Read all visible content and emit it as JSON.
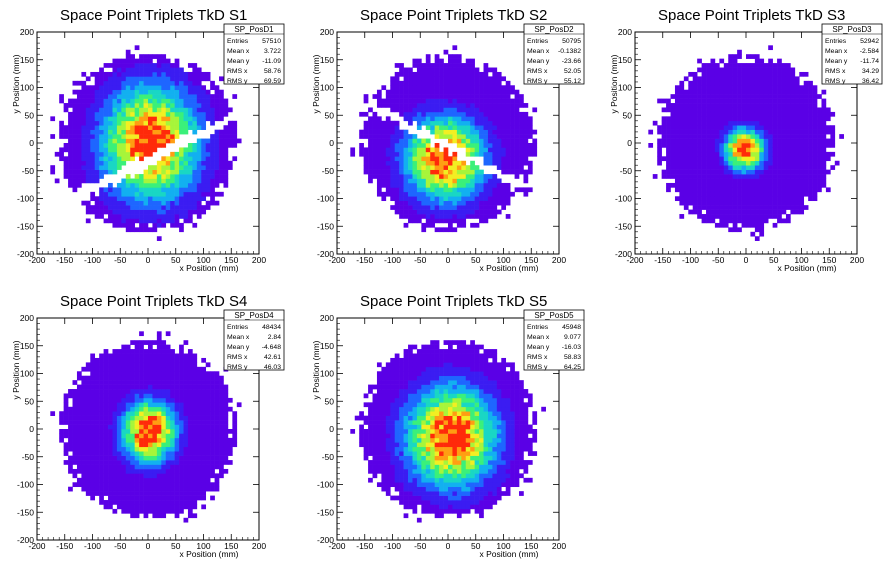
{
  "colors": {
    "palette": [
      "#5a00e6",
      "#3b1cf2",
      "#1e66ff",
      "#12b0f0",
      "#19d7c4",
      "#3af07a",
      "#a7f53a",
      "#f2ef22",
      "#ff9e12",
      "#ff2a0a"
    ],
    "frame": "#000000",
    "background": "#ffffff"
  },
  "chart_data": [
    {
      "type": "heatmap",
      "histogram_name": "SP_PosD1",
      "title": "Space Point Triplets TkD S1",
      "xlabel": "x Position (mm)",
      "ylabel": "y Position (mm)",
      "xlim": [
        -200,
        200
      ],
      "ylim": [
        -200,
        200
      ],
      "x_ticks": [
        "-200",
        "-150",
        "-100",
        "-50",
        "0",
        "50",
        "100",
        "150",
        "200"
      ],
      "y_ticks": [
        "200",
        "150",
        "100",
        "50",
        "0",
        "-50",
        "-100",
        "-150",
        "-200"
      ],
      "stats": [
        {
          "label": "Entries",
          "value": "57510"
        },
        {
          "label": "Mean x",
          "value": "3.722"
        },
        {
          "label": "Mean y",
          "value": "-11.09"
        },
        {
          "label": "RMS x",
          "value": "58.76"
        },
        {
          "label": "RMS y",
          "value": "69.59"
        }
      ],
      "distribution": {
        "center_x": 5,
        "center_y": 0,
        "sigma_x": 58,
        "sigma_y": 68,
        "radius": 162,
        "dead_band": {
          "angle_deg": 27,
          "offset": -28,
          "half_width": 7
        }
      }
    },
    {
      "type": "heatmap",
      "histogram_name": "SP_PosD2",
      "title": "Space Point Triplets TkD S2",
      "xlabel": "x Position (mm)",
      "ylabel": "y Position (mm)",
      "xlim": [
        -200,
        200
      ],
      "ylim": [
        -200,
        200
      ],
      "x_ticks": [
        "-200",
        "-150",
        "-100",
        "-50",
        "0",
        "50",
        "100",
        "150",
        "200"
      ],
      "y_ticks": [
        "200",
        "150",
        "100",
        "50",
        "0",
        "-50",
        "-100",
        "-150",
        "-200"
      ],
      "stats": [
        {
          "label": "Entries",
          "value": "50795"
        },
        {
          "label": "Mean x",
          "value": "-0.1382"
        },
        {
          "label": "Mean y",
          "value": "-23.66"
        },
        {
          "label": "RMS x",
          "value": "52.05"
        },
        {
          "label": "RMS y",
          "value": "55.12"
        }
      ],
      "distribution": {
        "center_x": -5,
        "center_y": -28,
        "sigma_x": 48,
        "sigma_y": 50,
        "radius": 158,
        "dead_band": {
          "angle_deg": -28,
          "offset": -6,
          "half_width": 5
        }
      }
    },
    {
      "type": "heatmap",
      "histogram_name": "SP_PosD3",
      "title": "Space Point Triplets TkD S3",
      "xlabel": "x Position (mm)",
      "ylabel": "y Position (mm)",
      "xlim": [
        -200,
        200
      ],
      "ylim": [
        -200,
        200
      ],
      "x_ticks": [
        "-200",
        "-150",
        "-100",
        "-50",
        "0",
        "50",
        "100",
        "150",
        "200"
      ],
      "y_ticks": [
        "200",
        "150",
        "100",
        "50",
        "0",
        "-50",
        "-100",
        "-150",
        "-200"
      ],
      "stats": [
        {
          "label": "Entries",
          "value": "52942"
        },
        {
          "label": "Mean x",
          "value": "-2.584"
        },
        {
          "label": "Mean y",
          "value": "-11.74"
        },
        {
          "label": "RMS x",
          "value": "34.29"
        },
        {
          "label": "RMS y",
          "value": "36.42"
        }
      ],
      "distribution": {
        "center_x": -3,
        "center_y": -12,
        "sigma_x": 24,
        "sigma_y": 25,
        "radius": 160
      }
    },
    {
      "type": "heatmap",
      "histogram_name": "SP_PosD4",
      "title": "Space Point Triplets TkD S4",
      "xlabel": "x Position (mm)",
      "ylabel": "y Position (mm)",
      "xlim": [
        -200,
        200
      ],
      "ylim": [
        -200,
        200
      ],
      "x_ticks": [
        "-200",
        "-150",
        "-100",
        "-50",
        "0",
        "50",
        "100",
        "150",
        "200"
      ],
      "y_ticks": [
        "200",
        "150",
        "100",
        "50",
        "0",
        "-50",
        "-100",
        "-150",
        "-200"
      ],
      "stats": [
        {
          "label": "Entries",
          "value": "48434"
        },
        {
          "label": "Mean x",
          "value": "2.84"
        },
        {
          "label": "Mean y",
          "value": "-4.648"
        },
        {
          "label": "RMS x",
          "value": "42.61"
        },
        {
          "label": "RMS y",
          "value": "46.03"
        }
      ],
      "distribution": {
        "center_x": 2,
        "center_y": -5,
        "sigma_x": 33,
        "sigma_y": 38,
        "radius": 160
      }
    },
    {
      "type": "heatmap",
      "histogram_name": "SP_PosD5",
      "title": "Space Point Triplets TkD S5",
      "xlabel": "x Position (mm)",
      "ylabel": "y Position (mm)",
      "xlim": [
        -200,
        200
      ],
      "ylim": [
        -200,
        200
      ],
      "x_ticks": [
        "-200",
        "-150",
        "-100",
        "-50",
        "0",
        "50",
        "100",
        "150",
        "200"
      ],
      "y_ticks": [
        "200",
        "150",
        "100",
        "50",
        "0",
        "-50",
        "-100",
        "-150",
        "-200"
      ],
      "stats": [
        {
          "label": "Entries",
          "value": "45948"
        },
        {
          "label": "Mean x",
          "value": "9.077"
        },
        {
          "label": "Mean y",
          "value": "-16.03"
        },
        {
          "label": "RMS x",
          "value": "58.83"
        },
        {
          "label": "RMS y",
          "value": "64.25"
        }
      ],
      "distribution": {
        "center_x": 6,
        "center_y": -14,
        "sigma_x": 55,
        "sigma_y": 60,
        "radius": 160
      }
    }
  ]
}
